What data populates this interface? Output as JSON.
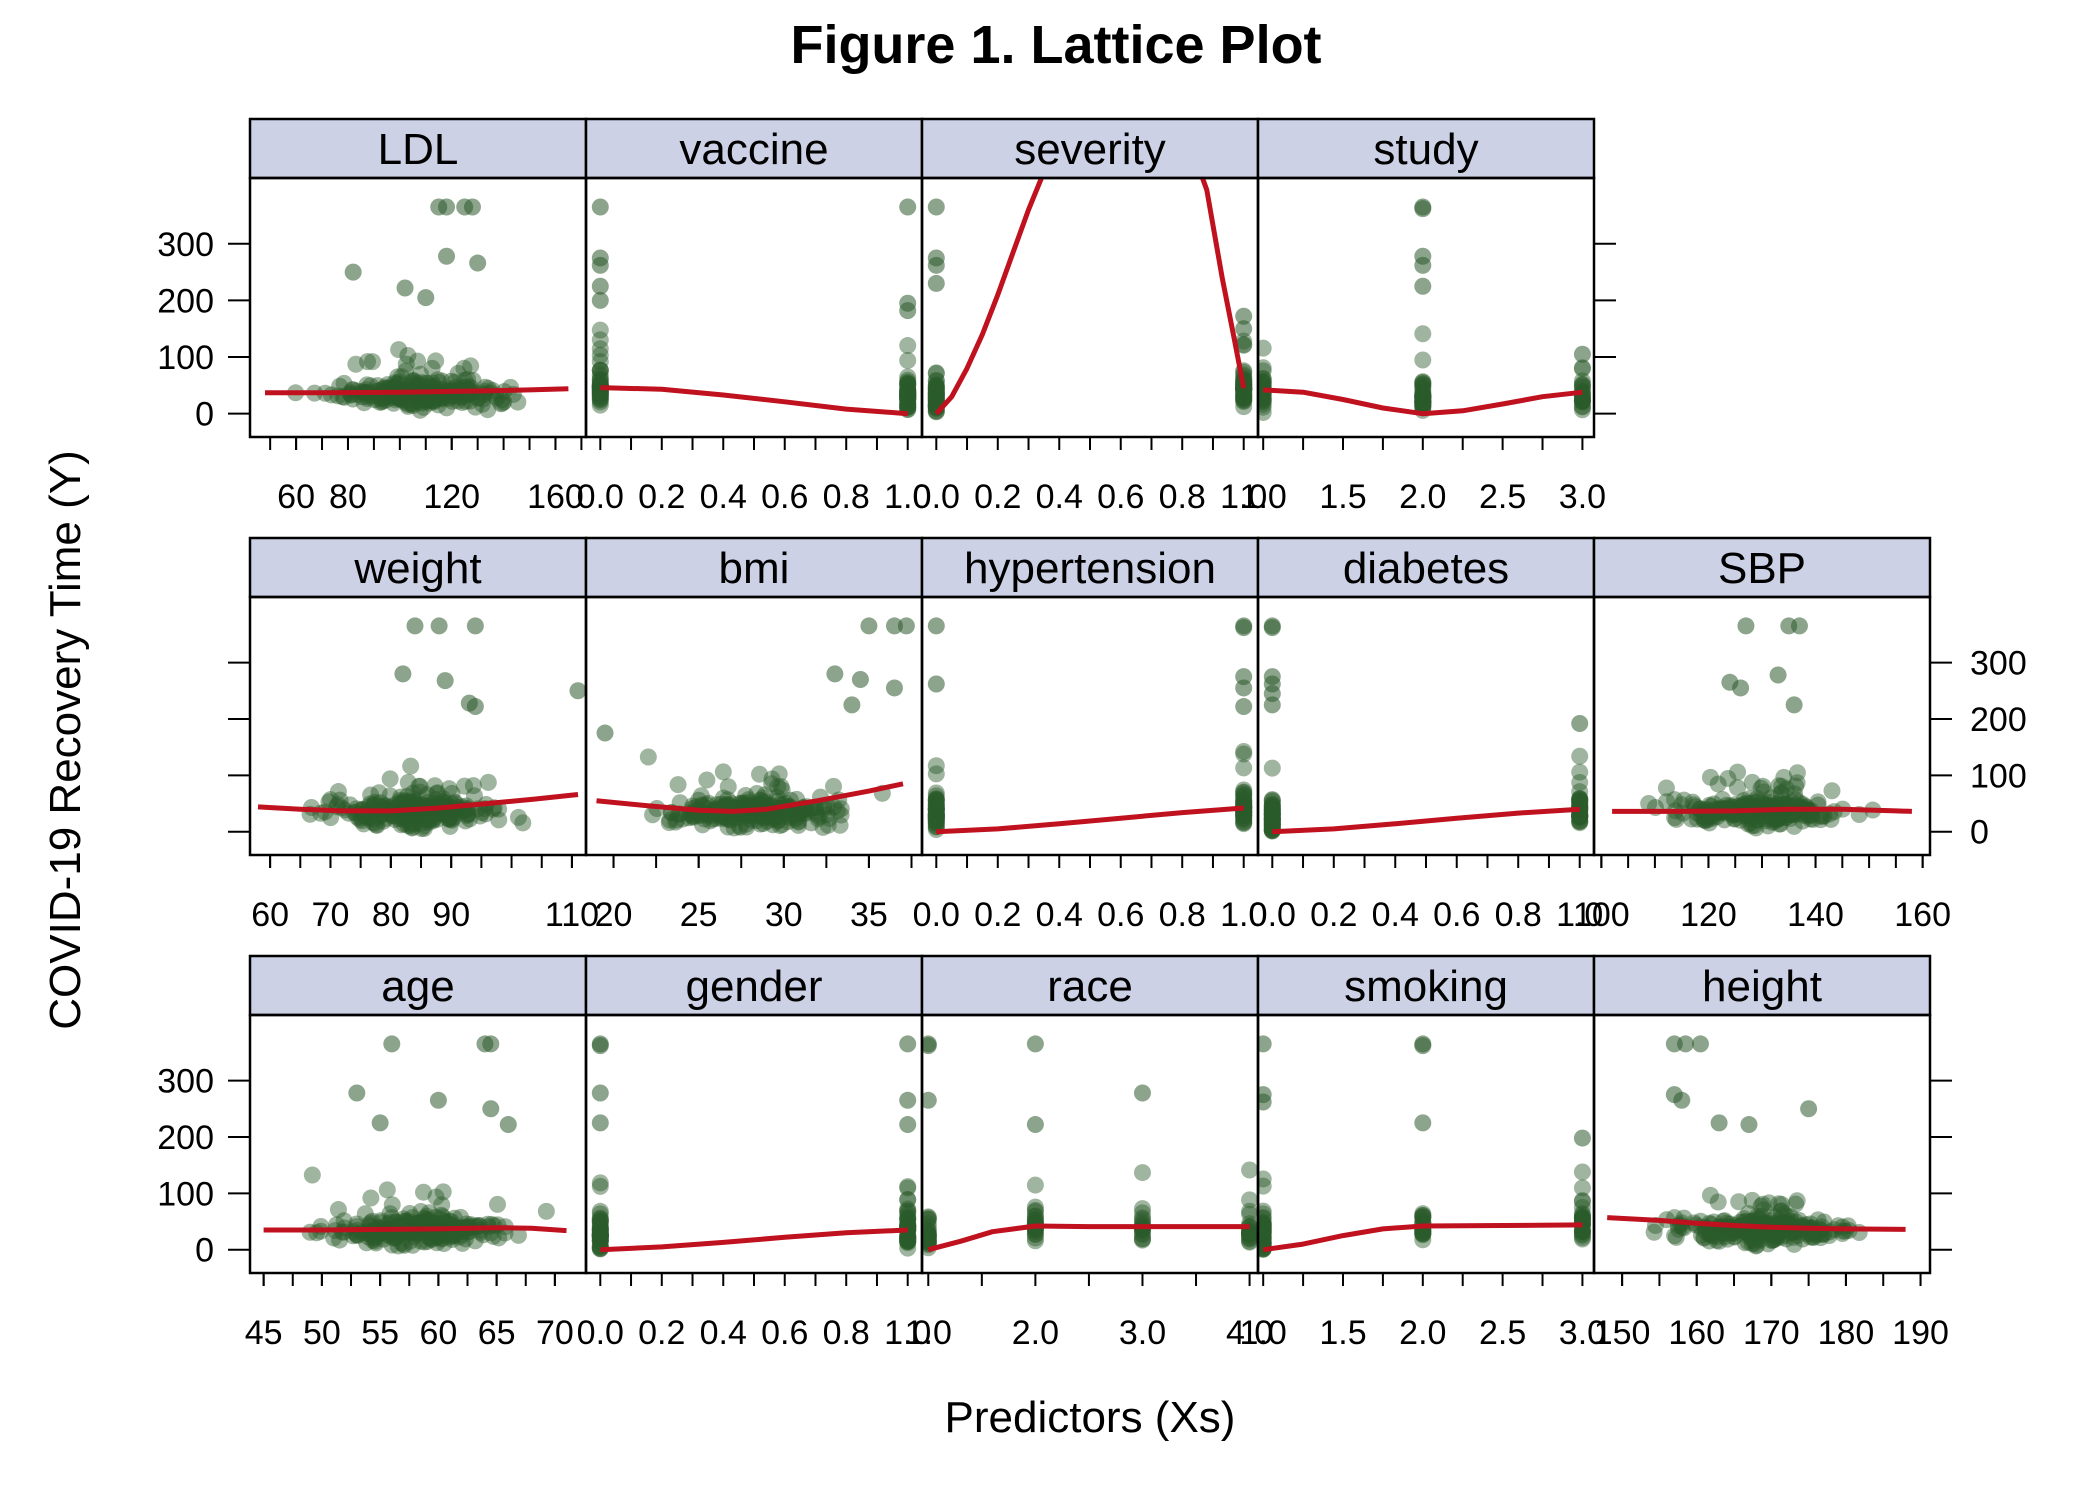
{
  "chart_data": {
    "type": "scatter",
    "title": "Figure 1. Lattice Plot",
    "xlabel": "Predictors (Xs)",
    "ylabel": "COVID-19 Recovery Time (Y)",
    "ylim": [
      -20,
      395
    ],
    "yticks": [
      0,
      100,
      200,
      300
    ],
    "grid": false,
    "colors": {
      "points": "#2b5a2b",
      "smooth": "#c0111f",
      "strip": "#ccd1e6",
      "frame": "#000000"
    },
    "panels": [
      {
        "name": "LDL",
        "xlim": [
          43,
          171
        ],
        "xticks": [
          60,
          80,
          120,
          160
        ],
        "xminor": [
          40,
          50,
          60,
          70,
          80,
          90,
          100,
          110,
          120,
          130,
          140,
          150,
          160,
          170
        ],
        "smooth": [
          [
            48,
            37
          ],
          [
            70,
            37
          ],
          [
            100,
            38
          ],
          [
            130,
            40
          ],
          [
            150,
            42
          ],
          [
            165,
            44
          ]
        ],
        "highlights": [
          [
            115,
            365
          ],
          [
            118,
            365
          ],
          [
            125,
            365
          ],
          [
            128,
            365
          ],
          [
            82,
            250
          ],
          [
            118,
            278
          ],
          [
            130,
            266
          ],
          [
            102,
            222
          ],
          [
            110,
            205
          ]
        ]
      },
      {
        "name": "vaccine",
        "xlim": [
          -0.04,
          1.04
        ],
        "xticks": [
          "0.0",
          "0.2",
          "0.4",
          "0.6",
          "0.8",
          "1.0"
        ],
        "xminor": [
          0.1,
          0.3,
          0.5,
          0.7,
          0.9
        ],
        "smooth": [
          [
            0,
            46
          ],
          [
            0.2,
            43
          ],
          [
            0.4,
            33
          ],
          [
            0.6,
            21
          ],
          [
            0.8,
            8
          ],
          [
            1.0,
            0
          ]
        ],
        "highlights": [
          [
            0,
            365
          ],
          [
            1,
            365
          ],
          [
            0,
            275
          ],
          [
            0,
            262
          ],
          [
            0,
            225
          ],
          [
            0,
            200
          ],
          [
            1,
            195
          ],
          [
            1,
            182
          ]
        ]
      },
      {
        "name": "severity",
        "xlim": [
          -0.04,
          1.04
        ],
        "xticks": [
          "0.0",
          "0.2",
          "0.4",
          "0.6",
          "0.8",
          "1.0"
        ],
        "xminor": [
          0.1,
          0.3,
          0.5,
          0.7,
          0.9
        ],
        "smooth": [
          [
            0,
            0
          ],
          [
            0.05,
            30
          ],
          [
            0.1,
            80
          ],
          [
            0.15,
            140
          ],
          [
            0.2,
            210
          ],
          [
            0.25,
            285
          ],
          [
            0.3,
            360
          ],
          [
            0.36,
            440
          ],
          [
            0.85,
            440
          ],
          [
            0.88,
            395
          ],
          [
            0.93,
            240
          ],
          [
            0.97,
            130
          ],
          [
            1.0,
            45
          ]
        ],
        "highlights": [
          [
            0,
            365
          ],
          [
            0,
            275
          ],
          [
            0,
            262
          ],
          [
            0,
            230
          ],
          [
            1,
            172
          ],
          [
            1,
            150
          ]
        ]
      },
      {
        "name": "study",
        "xlim": [
          0.98,
          3.06
        ],
        "xticks": [
          "1.0",
          "1.5",
          "2.0",
          "2.5",
          "3.0"
        ],
        "xminor": [
          1.25,
          1.75,
          2.25,
          2.75
        ],
        "smooth": [
          [
            1.0,
            42
          ],
          [
            1.25,
            38
          ],
          [
            1.5,
            25
          ],
          [
            1.75,
            10
          ],
          [
            2.0,
            0
          ],
          [
            2.25,
            5
          ],
          [
            2.5,
            17
          ],
          [
            2.75,
            30
          ],
          [
            3.0,
            38
          ]
        ],
        "highlights": [
          [
            2,
            365
          ],
          [
            2,
            362
          ],
          [
            2,
            278
          ],
          [
            2,
            262
          ],
          [
            2,
            225
          ],
          [
            3,
            105
          ]
        ]
      },
      {
        "name": "weight",
        "xlim": [
          57,
          112
        ],
        "xticks": [
          60,
          70,
          80,
          90,
          110
        ],
        "xminor": [
          60,
          65,
          70,
          75,
          80,
          85,
          90,
          95,
          100,
          105,
          110
        ],
        "smooth": [
          [
            58,
            44
          ],
          [
            65,
            40
          ],
          [
            72,
            37
          ],
          [
            80,
            37
          ],
          [
            88,
            42
          ],
          [
            96,
            50
          ],
          [
            104,
            58
          ],
          [
            111,
            66
          ]
        ],
        "highlights": [
          [
            84,
            365
          ],
          [
            88,
            365
          ],
          [
            94,
            365
          ],
          [
            82,
            280
          ],
          [
            89,
            268
          ],
          [
            111,
            250
          ],
          [
            93,
            228
          ],
          [
            94,
            222
          ]
        ]
      },
      {
        "name": "bmi",
        "xlim": [
          18.5,
          38
        ],
        "xticks": [
          20,
          25,
          30,
          35
        ],
        "xminor": [
          20,
          22.5,
          25,
          27.5,
          30,
          32.5,
          35,
          37.5
        ],
        "smooth": [
          [
            19,
            55
          ],
          [
            22,
            46
          ],
          [
            25,
            38
          ],
          [
            27,
            36
          ],
          [
            29,
            40
          ],
          [
            32,
            55
          ],
          [
            35,
            72
          ],
          [
            37,
            85
          ]
        ],
        "highlights": [
          [
            35,
            365
          ],
          [
            36.5,
            365
          ],
          [
            37.2,
            365
          ],
          [
            33,
            280
          ],
          [
            34.5,
            270
          ],
          [
            36.5,
            255
          ],
          [
            34,
            225
          ],
          [
            19.5,
            175
          ]
        ]
      },
      {
        "name": "hypertension",
        "xlim": [
          -0.04,
          1.04
        ],
        "xticks": [
          "0.0",
          "0.2",
          "0.4",
          "0.6",
          "0.8",
          "1.0"
        ],
        "xminor": [
          0.1,
          0.3,
          0.5,
          0.7,
          0.9
        ],
        "smooth": [
          [
            0,
            0
          ],
          [
            0.2,
            5
          ],
          [
            0.4,
            14
          ],
          [
            0.6,
            24
          ],
          [
            0.8,
            34
          ],
          [
            1.0,
            42
          ]
        ],
        "highlights": [
          [
            0,
            365
          ],
          [
            1,
            365
          ],
          [
            1,
            362
          ],
          [
            0,
            262
          ],
          [
            1,
            275
          ],
          [
            1,
            255
          ],
          [
            1,
            222
          ]
        ]
      },
      {
        "name": "diabetes",
        "xlim": [
          -0.04,
          1.04
        ],
        "xticks": [
          "0.0",
          "0.2",
          "0.4",
          "0.6",
          "0.8",
          "1.0"
        ],
        "xminor": [
          0.1,
          0.3,
          0.5,
          0.7,
          0.9
        ],
        "smooth": [
          [
            0,
            0
          ],
          [
            0.2,
            5
          ],
          [
            0.4,
            14
          ],
          [
            0.6,
            24
          ],
          [
            0.8,
            33
          ],
          [
            1.0,
            40
          ]
        ],
        "highlights": [
          [
            0,
            365
          ],
          [
            0,
            362
          ],
          [
            0,
            275
          ],
          [
            0,
            262
          ],
          [
            0,
            245
          ],
          [
            0,
            225
          ],
          [
            1,
            192
          ]
        ]
      },
      {
        "name": "SBP",
        "xlim": [
          99,
          161
        ],
        "xticks": [
          100,
          120,
          140,
          160
        ],
        "xminor": [
          100,
          105,
          110,
          115,
          120,
          125,
          130,
          135,
          140,
          145,
          150,
          155,
          160
        ],
        "smooth": [
          [
            102,
            36
          ],
          [
            115,
            36
          ],
          [
            125,
            37
          ],
          [
            135,
            40
          ],
          [
            145,
            40
          ],
          [
            155,
            37
          ],
          [
            158,
            36
          ]
        ],
        "highlights": [
          [
            127,
            365
          ],
          [
            135,
            365
          ],
          [
            137,
            365
          ],
          [
            124,
            265
          ],
          [
            133,
            278
          ],
          [
            136,
            225
          ],
          [
            126,
            255
          ]
        ]
      },
      {
        "name": "age",
        "xlim": [
          44,
          72.5
        ],
        "xticks": [
          45,
          50,
          55,
          60,
          65,
          70
        ],
        "xminor": [
          45,
          47.5,
          50,
          52.5,
          55,
          57.5,
          60,
          62.5,
          65,
          67.5,
          70
        ],
        "smooth": [
          [
            45,
            35
          ],
          [
            50,
            35
          ],
          [
            55,
            36
          ],
          [
            60,
            37
          ],
          [
            65,
            39
          ],
          [
            68,
            38
          ],
          [
            71,
            34
          ]
        ],
        "highlights": [
          [
            56,
            365
          ],
          [
            64,
            365
          ],
          [
            64.5,
            365
          ],
          [
            53,
            278
          ],
          [
            60,
            265
          ],
          [
            64.5,
            250
          ],
          [
            55,
            225
          ],
          [
            66,
            222
          ]
        ]
      },
      {
        "name": "gender",
        "xlim": [
          -0.04,
          1.04
        ],
        "xticks": [
          "0.0",
          "0.2",
          "0.4",
          "0.6",
          "0.8",
          "1.0"
        ],
        "xminor": [
          0.1,
          0.3,
          0.5,
          0.7,
          0.9
        ],
        "smooth": [
          [
            0,
            0
          ],
          [
            0.2,
            5
          ],
          [
            0.4,
            13
          ],
          [
            0.6,
            22
          ],
          [
            0.8,
            30
          ],
          [
            1.0,
            35
          ]
        ],
        "highlights": [
          [
            0,
            365
          ],
          [
            0,
            362
          ],
          [
            1,
            365
          ],
          [
            0,
            278
          ],
          [
            0,
            225
          ],
          [
            1,
            265
          ],
          [
            1,
            222
          ]
        ]
      },
      {
        "name": "race",
        "xlim": [
          0.96,
          4.06
        ],
        "xticks": [
          "1.0",
          "2.0",
          "3.0",
          "4.0"
        ],
        "xminor": [
          1.5,
          2.5,
          3.5
        ],
        "smooth": [
          [
            1,
            0
          ],
          [
            1.3,
            15
          ],
          [
            1.6,
            32
          ],
          [
            2,
            42
          ],
          [
            2.5,
            41
          ],
          [
            3,
            41
          ],
          [
            3.5,
            41
          ],
          [
            4,
            41
          ]
        ],
        "highlights": [
          [
            1,
            365
          ],
          [
            1,
            362
          ],
          [
            2,
            365
          ],
          [
            3,
            278
          ],
          [
            1,
            265
          ],
          [
            2,
            222
          ]
        ]
      },
      {
        "name": "smoking",
        "xlim": [
          0.98,
          3.06
        ],
        "xticks": [
          "1.0",
          "1.5",
          "2.0",
          "2.5",
          "3.0"
        ],
        "xminor": [
          1.25,
          1.75,
          2.25,
          2.75
        ],
        "smooth": [
          [
            1,
            0
          ],
          [
            1.25,
            10
          ],
          [
            1.5,
            25
          ],
          [
            1.75,
            37
          ],
          [
            2,
            42
          ],
          [
            2.5,
            43
          ],
          [
            3,
            44
          ]
        ],
        "highlights": [
          [
            1,
            365
          ],
          [
            2,
            365
          ],
          [
            2,
            362
          ],
          [
            1,
            275
          ],
          [
            1,
            262
          ],
          [
            2,
            225
          ],
          [
            3,
            198
          ]
        ]
      },
      {
        "name": "height",
        "xlim": [
          146.5,
          191
        ],
        "xticks": [
          150,
          160,
          170,
          180,
          190
        ],
        "xminor": [
          150,
          155,
          160,
          165,
          170,
          175,
          180,
          185,
          190
        ],
        "smooth": [
          [
            148,
            57
          ],
          [
            155,
            52
          ],
          [
            160,
            47
          ],
          [
            165,
            43
          ],
          [
            170,
            40
          ],
          [
            175,
            38
          ],
          [
            180,
            37
          ],
          [
            188,
            36
          ]
        ],
        "highlights": [
          [
            157,
            365
          ],
          [
            158.5,
            365
          ],
          [
            160.5,
            365
          ],
          [
            157,
            275
          ],
          [
            158,
            265
          ],
          [
            175,
            250
          ],
          [
            163,
            225
          ],
          [
            167,
            222
          ]
        ]
      }
    ]
  }
}
